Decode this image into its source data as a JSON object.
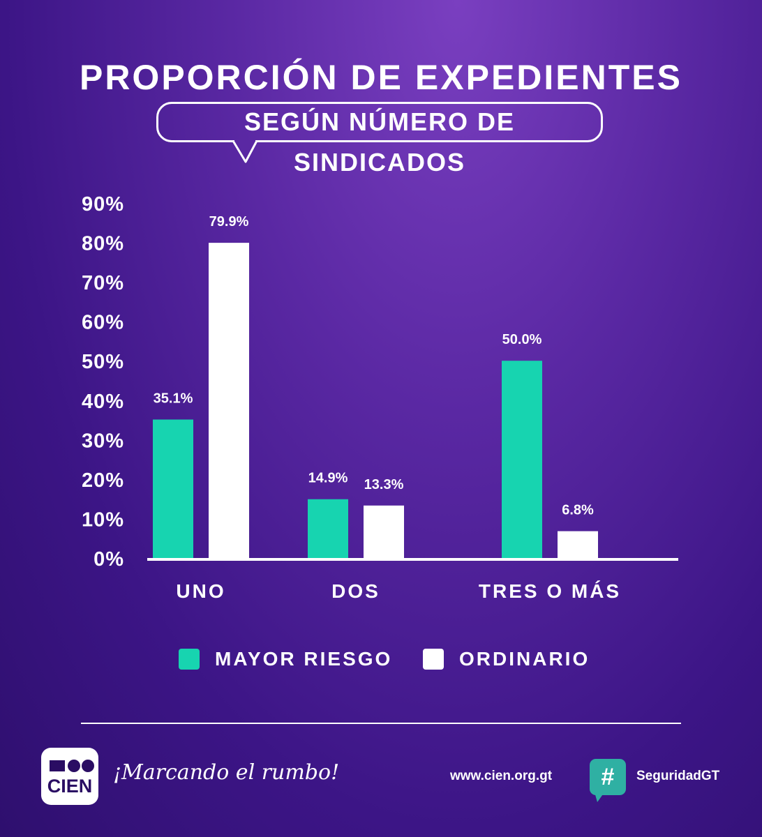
{
  "header": {
    "title": "PROPORCIÓN DE EXPEDIENTES",
    "subtitle": "SEGÚN NÚMERO DE SINDICADOS"
  },
  "colors": {
    "mayor_riesgo": "#17d4b0",
    "ordinario": "#ffffff",
    "accent": "#2fb0a3"
  },
  "chart_data": {
    "type": "bar",
    "title": "PROPORCIÓN DE EXPEDIENTES",
    "subtitle": "SEGÚN NÚMERO DE SINDICADOS",
    "categories": [
      "UNO",
      "DOS",
      "TRES O MÁS"
    ],
    "series": [
      {
        "name": "MAYOR RIESGO",
        "values": [
          35.1,
          14.9,
          50.0
        ],
        "labels": [
          "35.1%",
          "14.9%",
          "50.0%"
        ]
      },
      {
        "name": "ORDINARIO",
        "values": [
          79.9,
          13.3,
          6.8
        ],
        "labels": [
          "79.9%",
          "13.3%",
          "6.8%"
        ]
      }
    ],
    "ylim": [
      0,
      90
    ],
    "yticks": [
      0,
      10,
      20,
      30,
      40,
      50,
      60,
      70,
      80,
      90
    ],
    "ytick_labels": [
      "0%",
      "10%",
      "20%",
      "30%",
      "40%",
      "50%",
      "60%",
      "70%",
      "80%",
      "90%"
    ],
    "xlabel": "",
    "ylabel": "",
    "grid": false,
    "legend_position": "bottom"
  },
  "legend": {
    "items": [
      {
        "label": "MAYOR RIESGO"
      },
      {
        "label": "ORDINARIO"
      }
    ]
  },
  "footer": {
    "logo_text": "CIEN",
    "tagline": "¡Marcando el rumbo!",
    "url": "www.cien.org.gt",
    "hashtag_symbol": "#",
    "hashtag": "SeguridadGT"
  }
}
